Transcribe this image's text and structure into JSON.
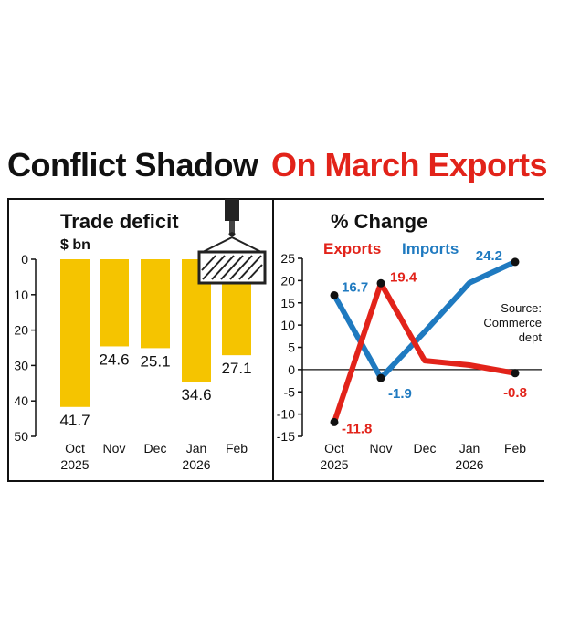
{
  "headline": {
    "black": "Conflict Shadow",
    "red": "On March Exports"
  },
  "colors": {
    "bar": "#f5c400",
    "exports": "#e2231a",
    "imports": "#1f7ac0",
    "text": "#111111"
  },
  "chart_data": [
    {
      "type": "bar",
      "title": "Trade deficit",
      "ylabel": "$ bn",
      "categories": [
        "Oct 2025",
        "Nov",
        "Dec",
        "Jan 2026",
        "Feb"
      ],
      "category_lines": [
        [
          "Oct",
          "2025"
        ],
        [
          "Nov"
        ],
        [
          "Dec"
        ],
        [
          "Jan",
          "2026"
        ],
        [
          "Feb"
        ]
      ],
      "values": [
        41.7,
        24.6,
        25.1,
        34.6,
        27.1
      ],
      "value_labels": [
        "41.7",
        "24.6",
        "25.1",
        "34.6",
        "27.1"
      ],
      "yticks": [
        "0",
        "10",
        "20",
        "30",
        "40",
        "50"
      ],
      "ylim": [
        0,
        50
      ],
      "inverted_y": true,
      "legend": "none",
      "grid": false
    },
    {
      "type": "line",
      "title": "% Change",
      "categories": [
        "Oct 2025",
        "Nov",
        "Dec",
        "Jan 2026",
        "Feb"
      ],
      "category_lines": [
        [
          "Oct",
          "2025"
        ],
        [
          "Nov"
        ],
        [
          "Dec"
        ],
        [
          "Jan",
          "2026"
        ],
        [
          "Feb"
        ]
      ],
      "series": [
        {
          "name": "Exports",
          "values": [
            -11.8,
            19.4,
            2.0,
            1.0,
            -0.8
          ],
          "labels": [
            "-11.8",
            "19.4",
            "",
            "",
            "-0.8"
          ]
        },
        {
          "name": "Imports",
          "values": [
            16.7,
            -1.9,
            8.5,
            19.5,
            24.2
          ],
          "labels": [
            "16.7",
            "-1.9",
            "",
            "",
            "24.2"
          ]
        }
      ],
      "yticks": [
        "25",
        "20",
        "15",
        "10",
        "5",
        "0",
        "-5",
        "-10",
        "-15"
      ],
      "ylim": [
        -15,
        25
      ],
      "legend": "top",
      "grid": false,
      "source": [
        "Source:",
        "Commerce",
        "dept"
      ]
    }
  ]
}
